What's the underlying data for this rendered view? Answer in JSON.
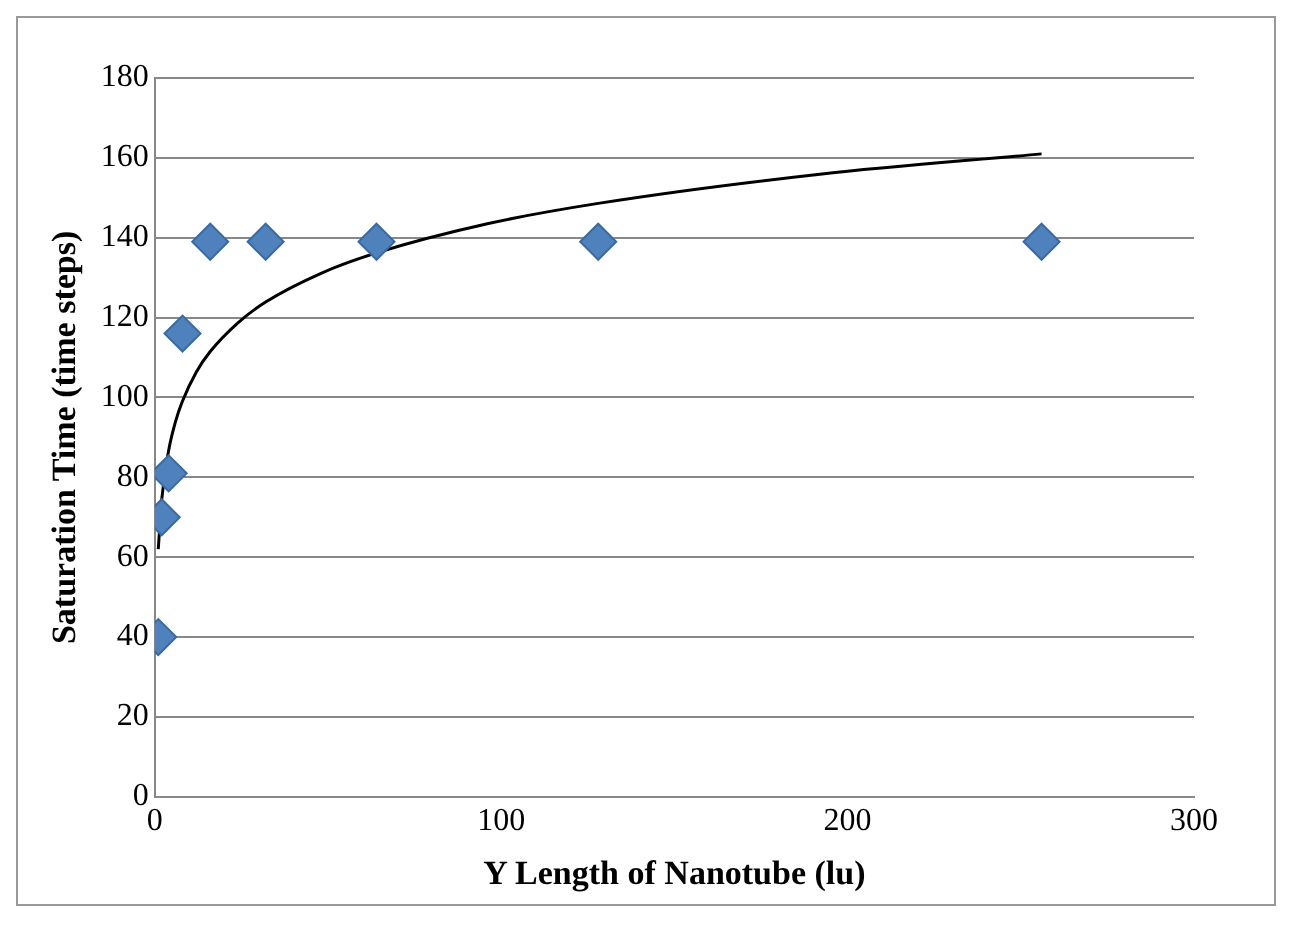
{
  "chart_data": {
    "type": "scatter",
    "xlabel": "Y Length of Nanotube (lu)",
    "ylabel": "Saturation Time (time steps)",
    "xlim": [
      0,
      300
    ],
    "xticks": [
      0,
      100,
      200,
      300
    ],
    "ylim": [
      0,
      180
    ],
    "yticks": [
      0,
      20,
      40,
      60,
      80,
      100,
      120,
      140,
      160,
      180
    ],
    "grid": "y",
    "legend": false,
    "marker": "diamond",
    "series": [
      {
        "type": "scatter",
        "color": "#4f81bd",
        "x": [
          1,
          2,
          4,
          8,
          16,
          32,
          64,
          128,
          256
        ],
        "values": [
          40,
          70,
          81,
          116,
          139,
          139,
          139,
          139,
          139
        ]
      },
      {
        "type": "line",
        "color": "#000000",
        "line_style": "solid",
        "marker": "none",
        "x": [
          1,
          2,
          4,
          6,
          8,
          12,
          16,
          24,
          32,
          48,
          64,
          96,
          128,
          192,
          256
        ],
        "values": [
          62,
          74.4,
          86.7,
          94,
          99.1,
          106.4,
          111.5,
          118.7,
          123.9,
          131.1,
          136.2,
          143.5,
          148.6,
          155.9,
          161
        ]
      }
    ]
  }
}
